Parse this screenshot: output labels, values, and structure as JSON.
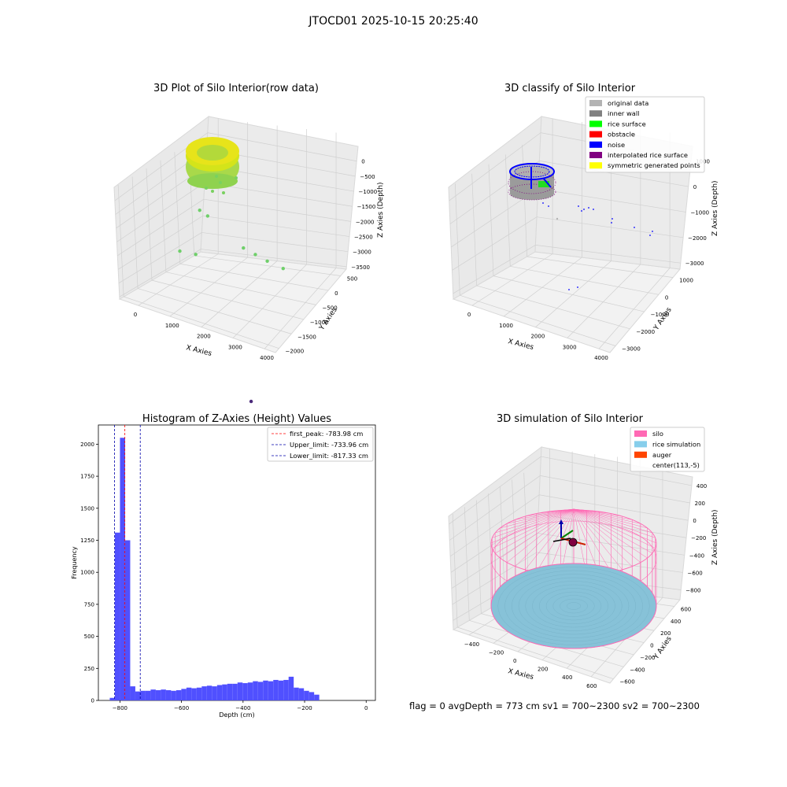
{
  "figure": {
    "title": "JTOCD01 2025-10-15 20:25:40",
    "footer": "flag = 0     avgDepth = 773 cm  sv1 = 700~2300  sv2 = 700~2300"
  },
  "chart_data": [
    {
      "type": "scatter3d",
      "title": "3D Plot of Silo Interior(row data)",
      "xlabel": "X Axies",
      "ylabel": "Y Axies",
      "zlabel": "Z Axies (Depth)",
      "x_ticks": [
        "0",
        "1000",
        "2000",
        "3000",
        "4000"
      ],
      "y_ticks": [
        "500",
        "0",
        "−500",
        "−1000",
        "−1500",
        "−2000"
      ],
      "z_ticks": [
        "0",
        "−500",
        "−1000",
        "−1500",
        "−2000",
        "−2500",
        "−3000",
        "−3500"
      ],
      "colormap": "viridis",
      "outlier_points": [
        {
          "x": 1500,
          "y": -300,
          "z": -700
        },
        {
          "x": 1700,
          "y": -300,
          "z": -800
        },
        {
          "x": 2600,
          "y": -300,
          "z": -1400
        },
        {
          "x": 2900,
          "y": -300,
          "z": -1500
        },
        {
          "x": 3200,
          "y": -300,
          "z": -1600
        },
        {
          "x": 3600,
          "y": -300,
          "z": -1700
        },
        {
          "x": 1000,
          "y": -300,
          "z": -1800
        },
        {
          "x": 1400,
          "y": -300,
          "z": -1800
        },
        {
          "x": 2200,
          "y": -1800,
          "z": -3500
        }
      ]
    },
    {
      "type": "scatter3d",
      "title": "3D classify of Silo Interior",
      "xlabel": "X Axies",
      "ylabel": "Y Axies",
      "zlabel": "Z Axies (Depth)",
      "x_ticks": [
        "0",
        "1000",
        "2000",
        "3000",
        "4000"
      ],
      "y_ticks": [
        "1000",
        "0",
        "−1000",
        "−2000",
        "−3000"
      ],
      "z_ticks": [
        "1000",
        "0",
        "−1000",
        "−2000",
        "−3000"
      ],
      "legend": [
        {
          "label": "original data",
          "color": "#b3b3b3"
        },
        {
          "label": "inner wall",
          "color": "#808080"
        },
        {
          "label": "rice surface",
          "color": "#00ff00"
        },
        {
          "label": "obstacle",
          "color": "#ff0000"
        },
        {
          "label": "noise",
          "color": "#0000ff"
        },
        {
          "label": "interpolated rice surface",
          "color": "#800080"
        },
        {
          "label": "symmetric generated points",
          "color": "#ffff00"
        }
      ]
    },
    {
      "type": "bar",
      "title": "Histogram of Z-Axies (Height) Values",
      "xlabel": "Depth (cm)",
      "ylabel": "Frequency",
      "xlim": [
        -870,
        30
      ],
      "ylim": [
        0,
        2150
      ],
      "x_ticks": [
        -800,
        -600,
        -400,
        -200,
        0
      ],
      "x_tick_labels": [
        "−800",
        "−600",
        "−400",
        "−200",
        "0"
      ],
      "y_ticks": [
        0,
        250,
        500,
        750,
        1000,
        1250,
        1500,
        1750,
        2000
      ],
      "bar_color": "#5050ff",
      "bin_start": -833,
      "bin_width": 16.6,
      "values": [
        20,
        1310,
        2050,
        1250,
        110,
        70,
        75,
        75,
        85,
        80,
        85,
        80,
        75,
        80,
        90,
        100,
        95,
        100,
        110,
        115,
        110,
        120,
        125,
        130,
        130,
        140,
        135,
        140,
        150,
        145,
        155,
        150,
        160,
        155,
        160,
        185,
        100,
        95,
        75,
        65,
        45
      ],
      "vlines": [
        {
          "label": "first_peak: -783.98 cm",
          "x": -783.98,
          "color": "#ff0000"
        },
        {
          "label": "Upper_limit: -733.96 cm",
          "x": -733.96,
          "color": "#0000aa"
        },
        {
          "label": "Lower_limit: -817.33 cm",
          "x": -817.33,
          "color": "#0000aa"
        }
      ]
    },
    {
      "type": "surface3d",
      "title": "3D simulation of Silo Interior",
      "xlabel": "X Axies",
      "ylabel": "Y Axies",
      "zlabel": "Z Axies (Depth)",
      "x_ticks": [
        "−400",
        "−200",
        "0",
        "200",
        "400",
        "600"
      ],
      "y_ticks": [
        "600",
        "400",
        "200",
        "0",
        "−200",
        "−400",
        "−600"
      ],
      "z_ticks": [
        "400",
        "200",
        "0",
        "−200",
        "−400",
        "−600",
        "−800"
      ],
      "legend": [
        {
          "label": "silo",
          "color": "#ff69b4"
        },
        {
          "label": "rice simulation",
          "color": "#87ceeb"
        },
        {
          "label": "auger",
          "color": "#ff4500"
        },
        {
          "label": "center(113,-5)",
          "color": ""
        }
      ]
    }
  ]
}
